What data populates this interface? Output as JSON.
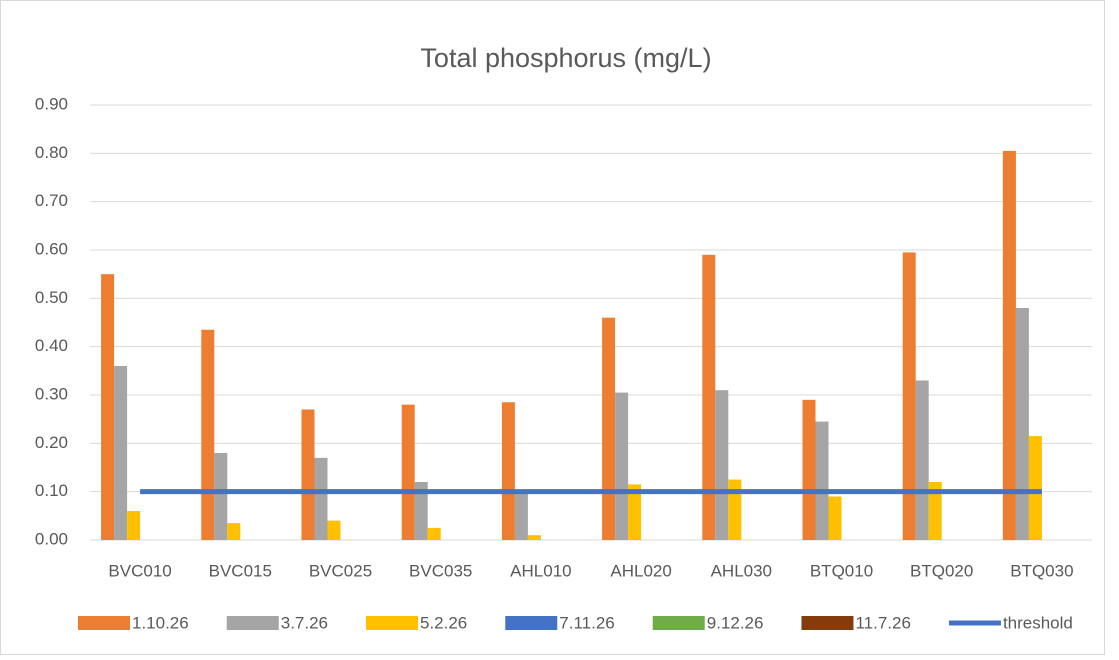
{
  "chart_data": {
    "type": "bar",
    "title": "Total phosphorus (mg/L)",
    "categories": [
      "BVC010",
      "BVC015",
      "BVC025",
      "BVC035",
      "AHL010",
      "AHL020",
      "AHL030",
      "BTQ010",
      "BTQ020",
      "BTQ030"
    ],
    "series": [
      {
        "name": "1.10.26",
        "color": "#ed7d31",
        "values": [
          0.55,
          0.435,
          0.27,
          0.28,
          0.285,
          0.46,
          0.59,
          0.29,
          0.595,
          0.805
        ]
      },
      {
        "name": "3.7.26",
        "color": "#a5a5a5",
        "values": [
          0.36,
          0.18,
          0.17,
          0.12,
          0.1,
          0.305,
          0.31,
          0.245,
          0.33,
          0.48
        ]
      },
      {
        "name": "5.2.26",
        "color": "#ffc000",
        "values": [
          0.06,
          0.035,
          0.04,
          0.025,
          0.01,
          0.115,
          0.125,
          0.09,
          0.12,
          0.215
        ]
      },
      {
        "name": "7.11.26",
        "color": "#4472c4",
        "values": [
          null,
          null,
          null,
          null,
          null,
          null,
          null,
          null,
          null,
          null
        ]
      },
      {
        "name": "9.12.26",
        "color": "#70ad47",
        "values": [
          null,
          null,
          null,
          null,
          null,
          null,
          null,
          null,
          null,
          null
        ]
      },
      {
        "name": "11.7.26",
        "color": "#843c0c",
        "values": [
          null,
          null,
          null,
          null,
          null,
          null,
          null,
          null,
          null,
          null
        ]
      },
      {
        "name": "threshold",
        "color": "#4472c4",
        "type": "line",
        "values": [
          0.1,
          0.1,
          0.1,
          0.1,
          0.1,
          0.1,
          0.1,
          0.1,
          0.1,
          0.1
        ]
      }
    ],
    "ylim": [
      0,
      0.9
    ],
    "yticks": [
      {
        "value": 0,
        "label": "0.00"
      },
      {
        "value": 0.1,
        "label": "0.10"
      },
      {
        "value": 0.2,
        "label": "0.20"
      },
      {
        "value": 0.3,
        "label": "0.30"
      },
      {
        "value": 0.4,
        "label": "0.40"
      },
      {
        "value": 0.5,
        "label": "0.50"
      },
      {
        "value": 0.6,
        "label": "0.60"
      },
      {
        "value": 0.7,
        "label": "0.70"
      },
      {
        "value": 0.8,
        "label": "0.80"
      },
      {
        "value": 0.9,
        "label": "0.90"
      }
    ],
    "grid": true,
    "legend": "bottom"
  }
}
